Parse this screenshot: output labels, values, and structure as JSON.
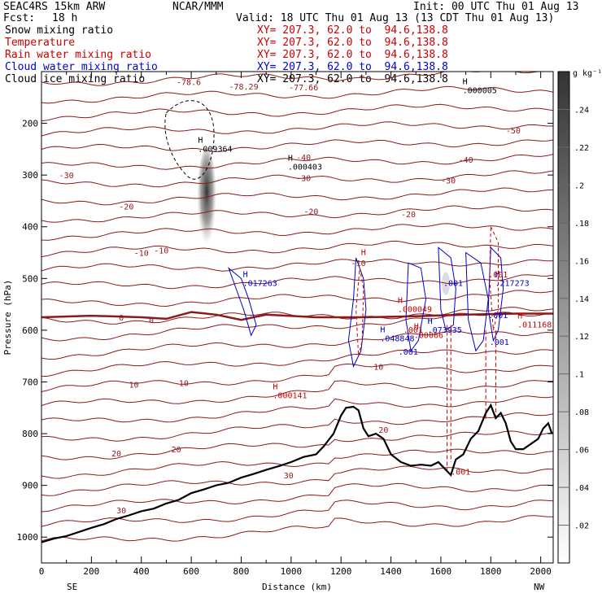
{
  "header": {
    "model": "SEAC4RS 15km ARW",
    "center": "NCAR/MMM",
    "init": "Init: 00 UTC Thu 01 Aug 13",
    "fcst_label": "Fcst:",
    "fcst_value": "18 h",
    "valid": "Valid: 18 UTC Thu 01 Aug 13 (13 CDT Thu 01 Aug 13)"
  },
  "fields": [
    {
      "name": "Snow mixing ratio",
      "xy": "XY= 207.3, 62.0 to  94.6,138.8",
      "color": "#000000"
    },
    {
      "name": "Temperature",
      "xy": "XY= 207.3, 62.0 to  94.6,138.8",
      "color": "#cc0000"
    },
    {
      "name": "Rain water mixing ratio",
      "xy": "XY= 207.3, 62.0 to  94.6,138.8",
      "color": "#cc0000"
    },
    {
      "name": "Cloud water mixing ratio",
      "xy": "XY= 207.3, 62.0 to  94.6,138.8",
      "color": "#0000cc"
    },
    {
      "name": "Cloud ice mixing ratio",
      "xy": "XY= 207.3, 62.0 to  94.6,138.8",
      "color": "#000000"
    }
  ],
  "chart_data": {
    "type": "cross-section",
    "xlabel": "Distance (km)",
    "ylabel": "Pressure (hPa)",
    "xlim": [
      0,
      2050
    ],
    "ylim": [
      1050,
      100
    ],
    "xticks": [
      0,
      100,
      200,
      300,
      400,
      500,
      600,
      700,
      800,
      900,
      1000,
      1100,
      1200,
      1300,
      1400,
      1500,
      1600,
      1700,
      1800,
      1900,
      2000
    ],
    "xtick_labels": [
      "0",
      "200",
      "400",
      "600",
      "800",
      "1000",
      "1200",
      "1400",
      "1600",
      "1800",
      "2000"
    ],
    "yticks": [
      200,
      300,
      400,
      500,
      600,
      700,
      800,
      900,
      1000
    ],
    "left_end": "SE",
    "right_end": "NW",
    "colorbar": {
      "unit": "g kg⁻¹",
      "ticks": [
        ".02",
        ".04",
        ".06",
        ".08",
        ".1",
        ".12",
        ".14",
        ".16",
        ".18",
        ".2",
        ".22",
        ".24"
      ],
      "range": [
        0,
        0.26
      ]
    },
    "temperature_labels": [
      {
        "x": 590,
        "p": 120,
        "text": "-78.6"
      },
      {
        "x": 810,
        "p": 128,
        "text": "-78.29"
      },
      {
        "x": 1050,
        "p": 130,
        "text": "-77.66"
      },
      {
        "x": 1890,
        "p": 213,
        "text": "-50"
      },
      {
        "x": 1050,
        "p": 265,
        "text": "-40"
      },
      {
        "x": 1700,
        "p": 270,
        "text": "-40"
      },
      {
        "x": 100,
        "p": 300,
        "text": "-30"
      },
      {
        "x": 1050,
        "p": 305,
        "text": "-30"
      },
      {
        "x": 1630,
        "p": 310,
        "text": "-30"
      },
      {
        "x": 340,
        "p": 360,
        "text": "-20"
      },
      {
        "x": 1080,
        "p": 370,
        "text": "-20"
      },
      {
        "x": 1470,
        "p": 375,
        "text": "-20"
      },
      {
        "x": 400,
        "p": 450,
        "text": "-10"
      },
      {
        "x": 480,
        "p": 445,
        "text": "-10"
      },
      {
        "x": 1270,
        "p": 470,
        "text": "-10"
      },
      {
        "x": 320,
        "p": 575,
        "text": "0"
      },
      {
        "x": 440,
        "p": 580,
        "text": "0"
      },
      {
        "x": 370,
        "p": 705,
        "text": "10"
      },
      {
        "x": 570,
        "p": 702,
        "text": "10"
      },
      {
        "x": 1350,
        "p": 670,
        "text": "10"
      },
      {
        "x": 1370,
        "p": 792,
        "text": "20"
      },
      {
        "x": 300,
        "p": 838,
        "text": "20"
      },
      {
        "x": 540,
        "p": 830,
        "text": "20"
      },
      {
        "x": 990,
        "p": 880,
        "text": "30"
      },
      {
        "x": 320,
        "p": 948,
        "text": "30"
      }
    ],
    "extrema_labels": [
      {
        "x": 640,
        "p": 250,
        "text": ".009364",
        "color": "#000000"
      },
      {
        "x": 1000,
        "p": 285,
        "text": ".000403",
        "color": "#000000"
      },
      {
        "x": 1700,
        "p": 137,
        "text": ".000005",
        "color": "#000000"
      },
      {
        "x": 820,
        "p": 510,
        "text": ".017263",
        "color": "#0000cc"
      },
      {
        "x": 1440,
        "p": 560,
        "text": ".000049",
        "color": "#cc0000"
      },
      {
        "x": 1505,
        "p": 610,
        "text": ".00066",
        "color": "#cc0000"
      },
      {
        "x": 1370,
        "p": 617,
        "text": ".048848",
        "color": "#0000cc"
      },
      {
        "x": 1560,
        "p": 600,
        "text": ".073935",
        "color": "#0000cc"
      },
      {
        "x": 1830,
        "p": 510,
        "text": ".217273",
        "color": "#0000cc"
      },
      {
        "x": 1920,
        "p": 590,
        "text": ".011168",
        "color": "#cc0000"
      },
      {
        "x": 940,
        "p": 727,
        "text": ".000141",
        "color": "#cc0000"
      }
    ],
    "small_labels": [
      {
        "x": 1280,
        "p": 450,
        "text": "H",
        "color": "#cc0000"
      },
      {
        "x": 1430,
        "p": 643,
        "text": ".001",
        "color": "#0000cc"
      },
      {
        "x": 1450,
        "p": 600,
        "text": ".001",
        "color": "#cc0000"
      },
      {
        "x": 1610,
        "p": 510,
        "text": ".001",
        "color": "#0000cc"
      },
      {
        "x": 1790,
        "p": 572,
        "text": ".001",
        "color": "#0000cc"
      },
      {
        "x": 1795,
        "p": 624,
        "text": ".001",
        "color": "#0000cc"
      },
      {
        "x": 1790,
        "p": 493,
        "text": ".001",
        "color": "#cc0000"
      },
      {
        "x": 1640,
        "p": 875,
        "text": ".001",
        "color": "#cc0000"
      }
    ],
    "terrain": {
      "x": [
        0,
        50,
        100,
        150,
        200,
        250,
        300,
        350,
        400,
        450,
        500,
        550,
        600,
        650,
        700,
        750,
        800,
        850,
        900,
        950,
        1000,
        1050,
        1100,
        1130,
        1170,
        1200,
        1220,
        1250,
        1270,
        1290,
        1310,
        1340,
        1370,
        1400,
        1440,
        1480,
        1520,
        1560,
        1590,
        1620,
        1640,
        1660,
        1690,
        1720,
        1750,
        1780,
        1800,
        1820,
        1840,
        1860,
        1880,
        1900,
        1930,
        1960,
        1990,
        2010,
        2030,
        2045
      ],
      "p": [
        1010,
        1003,
        998,
        990,
        982,
        975,
        965,
        958,
        950,
        945,
        935,
        928,
        915,
        908,
        900,
        895,
        885,
        878,
        870,
        863,
        855,
        845,
        840,
        825,
        800,
        765,
        750,
        748,
        755,
        790,
        805,
        800,
        810,
        840,
        855,
        862,
        860,
        862,
        855,
        870,
        880,
        850,
        840,
        810,
        795,
        760,
        745,
        770,
        760,
        780,
        815,
        830,
        830,
        820,
        810,
        790,
        780,
        800
      ]
    },
    "cloud_ice_core": {
      "x": 662,
      "p_top": 250,
      "p_bottom": 455,
      "max": 0.24
    },
    "rain_shafts": [
      {
        "x": 1625,
        "p_top": 590,
        "p_bottom": 870
      },
      {
        "x": 1640,
        "p_top": 590,
        "p_bottom": 855
      },
      {
        "x": 1780,
        "p_top": 600,
        "p_bottom": 775
      },
      {
        "x": 1820,
        "p_top": 600,
        "p_bottom": 770
      }
    ]
  }
}
